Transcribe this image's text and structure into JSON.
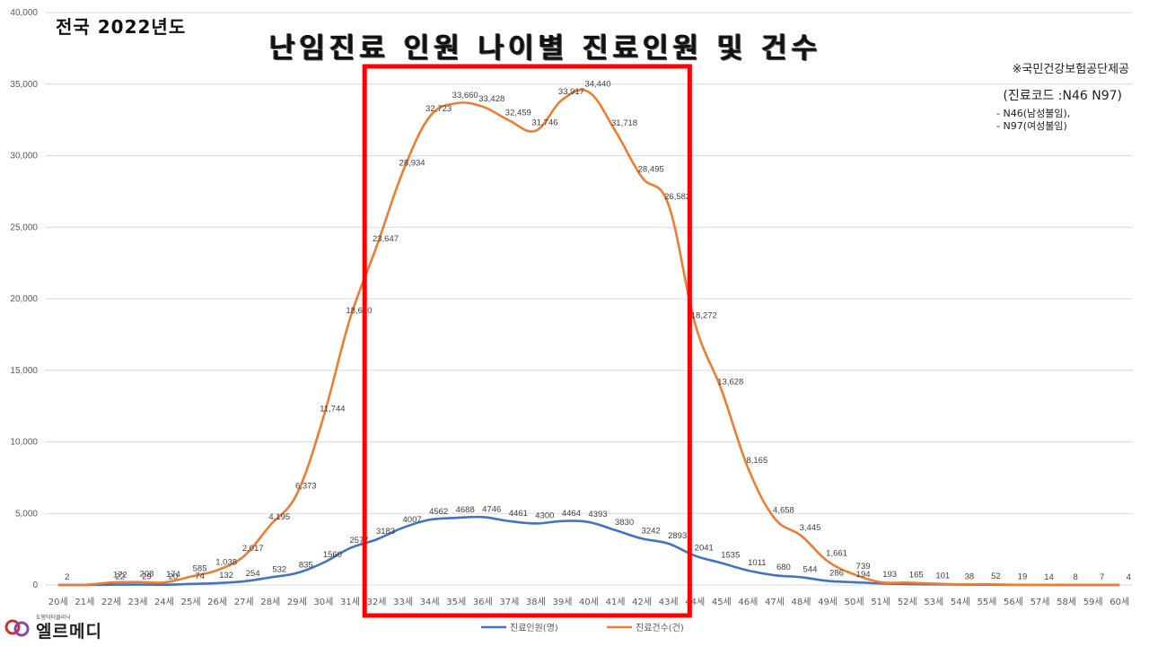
{
  "corner_title": "전국 2022년도",
  "title": "난임진료 인원 나이별 진료인원 및 건수",
  "source": "※국민건강보험공단제공",
  "codes_heading": "(진료코드 :N46 N97)",
  "code_items": [
    "N46(남성불임),",
    "N97(여성불임)"
  ],
  "logo_text": "엘르메디",
  "logo_subtext": "도핑닥터클리닉",
  "colors": {
    "patients": "#4472c4",
    "cases": "#ed7d31",
    "highlight": "#ff0000",
    "grid": "#d9d9d9"
  },
  "chart_data": {
    "type": "line",
    "categories": [
      "20세",
      "21세",
      "22세",
      "23세",
      "24세",
      "25세",
      "26세",
      "27세",
      "28세",
      "29세",
      "30세",
      "31세",
      "32세",
      "33세",
      "34세",
      "35세",
      "36세",
      "37세",
      "38세",
      "39세",
      "40세",
      "41세",
      "42세",
      "43세",
      "44세",
      "45세",
      "46세",
      "47세",
      "48세",
      "49세",
      "50세",
      "51세",
      "52세",
      "53세",
      "54세",
      "55세",
      "56세",
      "57세",
      "58세",
      "59세",
      "60세"
    ],
    "ylim": [
      0,
      40000
    ],
    "yticks": [
      "0",
      "5,000",
      "10,000",
      "15,000",
      "20,000",
      "25,000",
      "30,000",
      "35,000",
      "40,000"
    ],
    "series": [
      {
        "name": "진료인원(명)",
        "values": [
          2,
          5,
          22,
          29,
          20,
          74,
          132,
          254,
          532,
          835,
          1560,
          2577,
          3183,
          4007,
          4562,
          4688,
          4746,
          4461,
          4300,
          4464,
          4393,
          3830,
          3242,
          2893,
          2041,
          1535,
          1011,
          680,
          544,
          286,
          194,
          107,
          65,
          40,
          28,
          17,
          12,
          8,
          6,
          5,
          4
        ],
        "labels": [
          "2",
          "",
          "22",
          "29",
          "20",
          "74",
          "132",
          "254",
          "532",
          "835",
          "1560",
          "2577",
          "3183",
          "4007",
          "4562",
          "4688",
          "4746",
          "4461",
          "4300",
          "4464",
          "4393",
          "3830",
          "3242",
          "2893",
          "2041",
          "1535",
          "1011",
          "680",
          "544",
          "286",
          "194",
          "",
          "",
          "",
          "",
          "",
          "",
          "",
          "",
          "",
          ""
        ]
      },
      {
        "name": "진료건수(건)",
        "values": [
          9,
          8,
          172,
          208,
          174,
          585,
          1038,
          2017,
          4195,
          6373,
          11744,
          18620,
          23647,
          28934,
          32723,
          33660,
          33428,
          32459,
          31746,
          33917,
          34440,
          31718,
          28495,
          26582,
          18272,
          13628,
          8165,
          4658,
          3445,
          1661,
          739,
          193,
          165,
          101,
          38,
          52,
          19,
          14,
          8,
          7,
          4
        ],
        "labels": [
          "",
          "",
          "172",
          "208",
          "174",
          "585",
          "1,038",
          "2,017",
          "4,195",
          "6,373",
          "11,744",
          "18,620",
          "23,647",
          "28,934",
          "32,723",
          "33,660",
          "33,428",
          "32,459",
          "31,746",
          "33,917",
          "34,440",
          "31,718",
          "28,495",
          "26,582",
          "18,272",
          "13,628",
          "8,165",
          "4,658",
          "3,445",
          "1,661",
          "739",
          "193",
          "165",
          "101",
          "38",
          "52",
          "19",
          "14",
          "8",
          "7",
          "4"
        ]
      }
    ],
    "highlight_range": [
      "32세",
      "43세"
    ]
  }
}
